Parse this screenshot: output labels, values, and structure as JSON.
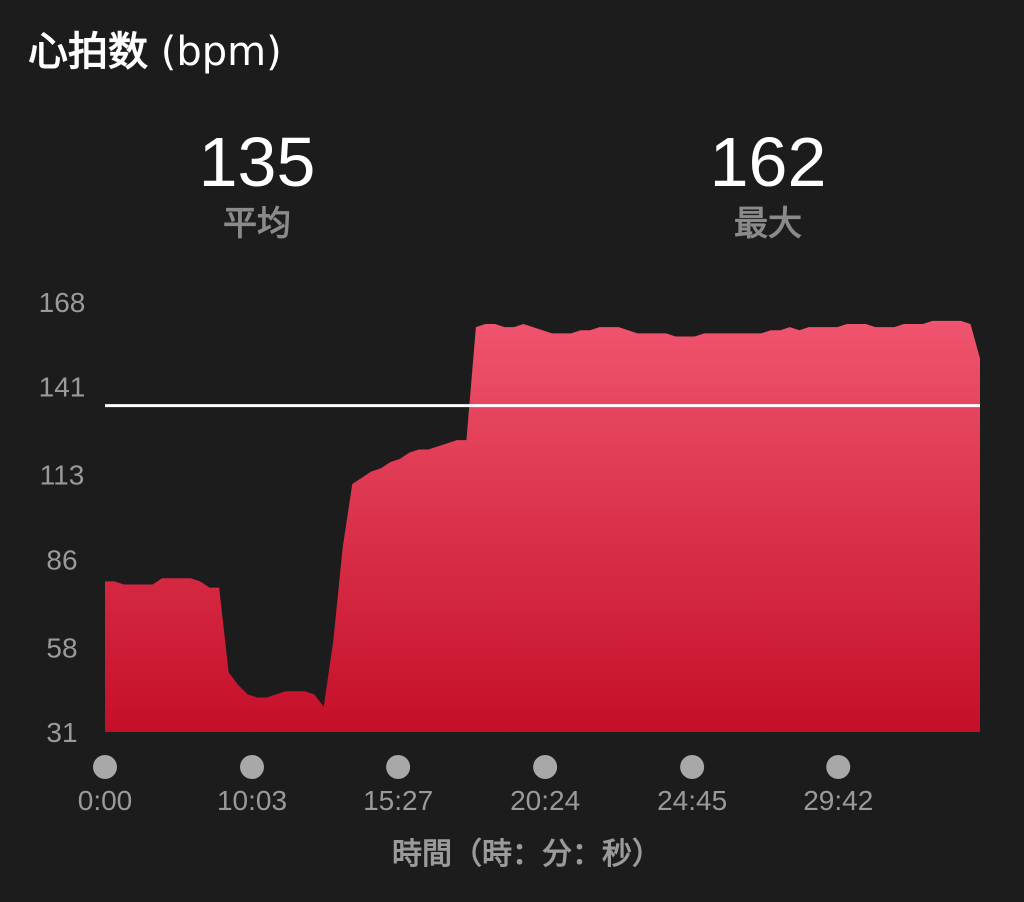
{
  "title": {
    "main": "心拍数",
    "unit": "(bpm)"
  },
  "stats": {
    "average": {
      "value": "135",
      "label": "平均"
    },
    "max": {
      "value": "162",
      "label": "最大"
    }
  },
  "colors": {
    "background": "#1c1c1c",
    "area_top": "#f0546e",
    "area_bottom": "#c50f28",
    "average_line": "#ffffff",
    "tick_dot": "#a8a8a8",
    "axis_text": "#9a9a9a"
  },
  "chart_data": {
    "type": "area",
    "title": "心拍数 (bpm)",
    "xlabel": "時間（時：分：秒）",
    "ylabel": "",
    "ylim": [
      31,
      168
    ],
    "y_ticks": [
      "168",
      "141",
      "113",
      "86",
      "58",
      "31"
    ],
    "x_tick_labels": [
      "0:00",
      "10:03",
      "15:27",
      "20:24",
      "24:45",
      "29:42"
    ],
    "x_tick_fractions": [
      0.0,
      0.168,
      0.335,
      0.503,
      0.671,
      0.838
    ],
    "average_line": 135,
    "grid": false,
    "legend": "none",
    "series": [
      {
        "values": [
          79,
          79,
          78,
          78,
          78,
          78,
          80,
          80,
          80,
          80,
          79,
          77,
          77,
          50,
          46,
          43,
          42,
          42,
          43,
          44,
          44,
          44,
          43,
          39,
          60,
          90,
          110,
          112,
          114,
          115,
          117,
          118,
          120,
          121,
          121,
          122,
          123,
          124,
          124,
          160,
          161,
          161,
          160,
          160,
          161,
          160,
          159,
          158,
          158,
          158,
          159,
          159,
          160,
          160,
          160,
          159,
          158,
          158,
          158,
          158,
          157,
          157,
          157,
          158,
          158,
          158,
          158,
          158,
          158,
          158,
          159,
          159,
          160,
          159,
          160,
          160,
          160,
          160,
          161,
          161,
          161,
          160,
          160,
          160,
          161,
          161,
          161,
          162,
          162,
          162,
          162,
          161,
          150
        ]
      }
    ]
  }
}
